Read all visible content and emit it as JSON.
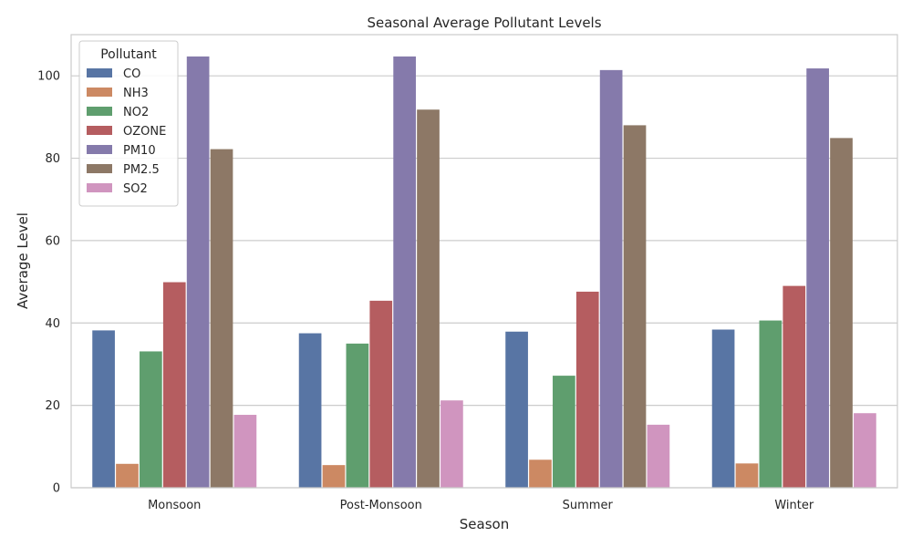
{
  "chart_data": {
    "type": "bar",
    "title": "Seasonal Average Pollutant Levels",
    "xlabel": "Season",
    "ylabel": "Average Level",
    "categories": [
      "Monsoon",
      "Post-Monsoon",
      "Summer",
      "Winter"
    ],
    "series": [
      {
        "name": "CO",
        "color": "#5875a4",
        "values": [
          38.2,
          37.5,
          37.9,
          38.4
        ]
      },
      {
        "name": "NH3",
        "color": "#cc8963",
        "values": [
          5.8,
          5.5,
          6.8,
          5.9
        ]
      },
      {
        "name": "NO2",
        "color": "#5f9e6e",
        "values": [
          33.1,
          35.0,
          27.2,
          40.6
        ]
      },
      {
        "name": "OZONE",
        "color": "#b55d60",
        "values": [
          49.9,
          45.4,
          47.6,
          49.0
        ]
      },
      {
        "name": "PM10",
        "color": "#857aab",
        "values": [
          104.7,
          104.7,
          101.4,
          101.8
        ]
      },
      {
        "name": "PM2.5",
        "color": "#8d7866",
        "values": [
          82.2,
          91.8,
          88.0,
          84.9
        ]
      },
      {
        "name": "SO2",
        "color": "#d095bf",
        "values": [
          17.7,
          21.2,
          15.3,
          18.1
        ]
      }
    ],
    "ylim": [
      0,
      110
    ],
    "yticks": [
      0,
      20,
      40,
      60,
      80,
      100
    ],
    "grid": "horizontal",
    "legend": {
      "title": "Pollutant",
      "placement": "top-left"
    }
  }
}
